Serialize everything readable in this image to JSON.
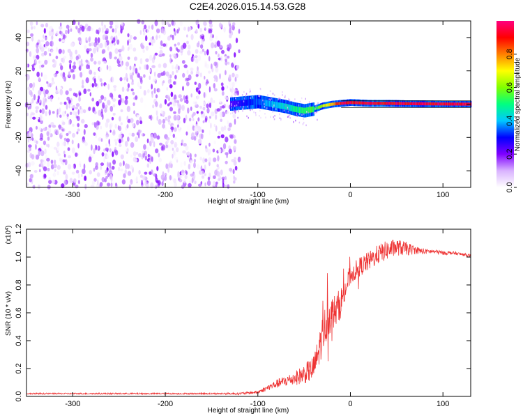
{
  "figure_title": "C2E4.2026.015.14.53.G28",
  "chart_data": [
    {
      "type": "heatmap",
      "title": "C2E4.2026.015.14.53.G28",
      "xlabel": "Height of straight line (km)",
      "ylabel": "Frequency (Hz)",
      "xlim": [
        -350,
        130
      ],
      "ylim": [
        -50,
        50
      ],
      "xticks": [
        -300,
        -200,
        -100,
        0,
        100
      ],
      "yticks": [
        -40,
        -20,
        0,
        20,
        40
      ],
      "colorbar": {
        "label": "Normalized spectral amplitude",
        "range": [
          0,
          1
        ],
        "ticks": [
          0.0,
          0.2,
          0.4,
          0.6,
          0.8
        ],
        "colors": [
          "#ffffff",
          "#d9b3ff",
          "#7f00ff",
          "#0000ff",
          "#00c8ff",
          "#00ff80",
          "#80ff00",
          "#ffff00",
          "#ff8000",
          "#ff0000",
          "#ff0080"
        ]
      },
      "noise_region_km": [
        -350,
        -130
      ],
      "signal_trace": {
        "height_km": [
          -130,
          -120,
          -110,
          -100,
          -90,
          -80,
          -70,
          -60,
          -50,
          -40,
          -30,
          -20,
          -10,
          0,
          20,
          40,
          60,
          80,
          100,
          130
        ],
        "frequency_hz": [
          0,
          0.5,
          1,
          1.5,
          0.5,
          -0.5,
          -1.5,
          -3,
          -4,
          -3,
          -1,
          0,
          0.5,
          1,
          0.5,
          0.5,
          0.3,
          0.2,
          0.1,
          0
        ]
      },
      "reference_lines_hz": [
        2,
        -2
      ]
    },
    {
      "type": "line",
      "title": "",
      "xlabel": "Height of straight line (km)",
      "ylabel": "SNR (10 * v/v)",
      "y_multiplier_label": "(x10",
      "y_multiplier_exp": "4",
      "y_multiplier_close": ")",
      "xlim": [
        -350,
        130
      ],
      "ylim": [
        0,
        1.2
      ],
      "xticks": [
        -300,
        -200,
        -100,
        0,
        100
      ],
      "yticks": [
        0.0,
        0.2,
        0.4,
        0.6,
        0.8,
        1.0,
        1.2
      ],
      "series": [
        {
          "name": "SNR",
          "color": "#ee3333",
          "x": [
            -350,
            -300,
            -250,
            -200,
            -150,
            -120,
            -100,
            -90,
            -80,
            -70,
            -60,
            -50,
            -40,
            -35,
            -30,
            -25,
            -20,
            -15,
            -10,
            -5,
            0,
            10,
            20,
            30,
            40,
            50,
            60,
            70,
            80,
            90,
            100,
            110,
            120,
            130
          ],
          "y": [
            0.02,
            0.02,
            0.02,
            0.02,
            0.02,
            0.02,
            0.03,
            0.06,
            0.09,
            0.11,
            0.13,
            0.16,
            0.2,
            0.3,
            0.45,
            0.55,
            0.6,
            0.62,
            0.68,
            0.78,
            0.87,
            0.93,
            0.97,
            1.02,
            1.05,
            1.07,
            1.06,
            1.05,
            1.04,
            1.04,
            1.03,
            1.03,
            1.02,
            1.01
          ],
          "noise_amplitude": [
            0.005,
            0.005,
            0.005,
            0.005,
            0.005,
            0.008,
            0.01,
            0.02,
            0.03,
            0.04,
            0.05,
            0.07,
            0.09,
            0.12,
            0.14,
            0.15,
            0.12,
            0.12,
            0.11,
            0.09,
            0.07,
            0.07,
            0.07,
            0.07,
            0.07,
            0.06,
            0.05,
            0.03,
            0.02,
            0.015,
            0.015,
            0.012,
            0.01,
            0.01
          ]
        }
      ]
    }
  ]
}
